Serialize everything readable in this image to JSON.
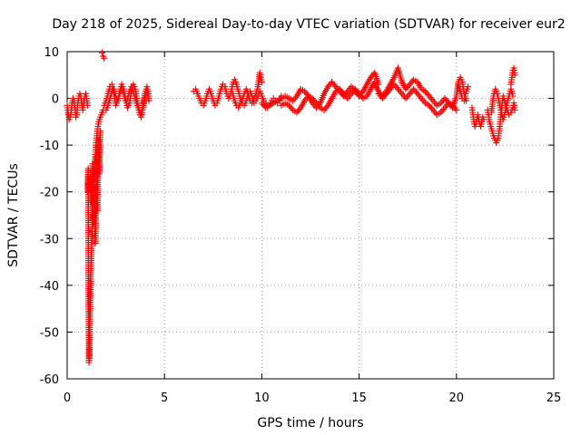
{
  "chart_data": {
    "type": "scatter",
    "title": "Day 218 of 2025, Sidereal Day-to-day VTEC variation (SDTVAR) for receiver eur2",
    "xlabel": "GPS time / hours",
    "ylabel": "SDTVAR / TECUs",
    "xlim": [
      0,
      25
    ],
    "ylim": [
      -60,
      10
    ],
    "xticks": [
      0,
      5,
      10,
      15,
      20,
      25
    ],
    "yticks": [
      -60,
      -50,
      -40,
      -30,
      -20,
      -10,
      0,
      10
    ],
    "xtick_labels": [
      "0",
      "5",
      "10",
      "15",
      "20",
      "25"
    ],
    "ytick_labels": [
      "-60",
      "-50",
      "-40",
      "-30",
      "-20",
      "-10",
      "0",
      "10"
    ],
    "grid": true,
    "marker": "plus",
    "color": "#ff0000",
    "series": [
      {
        "name": "SDTVAR",
        "segments": [
          {
            "x": [
              0.0,
              0.05,
              0.1,
              0.15,
              0.2,
              0.25,
              0.3,
              0.35,
              0.4,
              0.45,
              0.5,
              0.55,
              0.6,
              0.65,
              0.7,
              0.75,
              0.8,
              0.85,
              0.9,
              0.95,
              1.0,
              1.05
            ],
            "y": [
              -1.5,
              -3.0,
              -4.5,
              -4.0,
              -3.0,
              -1.0,
              0.0,
              -0.5,
              -2.0,
              -4.0,
              -3.5,
              -1.0,
              0.5,
              1.0,
              0.5,
              -1.0,
              -2.5,
              -1.0,
              0.5,
              1.0,
              0.0,
              -1.5
            ]
          },
          {
            "x": [
              1.05,
              1.08,
              1.1,
              1.12,
              1.14,
              1.16,
              1.18,
              1.2,
              1.22,
              1.24,
              1.26,
              1.28,
              1.3,
              1.32,
              1.34,
              1.36,
              1.38,
              1.4,
              1.42,
              1.44,
              1.46,
              1.48,
              1.5,
              1.52,
              1.55,
              1.58,
              1.62,
              1.66,
              1.7,
              1.75,
              1.8,
              1.85
            ],
            "y": [
              -20.0,
              -15.0,
              -42.0,
              -56.5,
              -55.0,
              -49.0,
              -45.0,
              -40.0,
              -36.0,
              -33.0,
              -30.0,
              -28.0,
              -26.0,
              -24.0,
              -22.0,
              -20.0,
              -18.0,
              -16.0,
              -14.0,
              -12.5,
              -11.0,
              -10.0,
              -9.0,
              -8.0,
              -7.0,
              -6.0,
              -5.0,
              -4.5,
              -4.0,
              -3.5,
              -3.0,
              -2.5
            ]
          },
          {
            "x": [
              1.2,
              1.25,
              1.3,
              1.35,
              1.4,
              1.45,
              1.5,
              1.55,
              1.6,
              1.65,
              1.7
            ],
            "y": [
              -17.0,
              -22.0,
              -14.0,
              -27.0,
              -19.0,
              -31.0,
              -12.0,
              -24.0,
              -9.0,
              -16.0,
              -7.0
            ]
          },
          {
            "x": [
              1.8,
              1.85,
              1.9
            ],
            "y": [
              9.8,
              9.0,
              8.6
            ]
          },
          {
            "x": [
              1.9,
              2.0,
              2.1,
              2.2,
              2.3,
              2.4,
              2.5,
              2.6,
              2.7,
              2.8,
              2.9,
              3.0,
              3.1,
              3.2,
              3.3,
              3.4,
              3.5,
              3.6,
              3.7,
              3.8,
              3.9,
              4.0,
              4.1,
              4.2
            ],
            "y": [
              -1.5,
              -0.5,
              1.0,
              2.5,
              3.0,
              1.0,
              -1.5,
              -0.5,
              1.5,
              3.0,
              2.0,
              0.0,
              -2.0,
              -1.0,
              1.5,
              3.0,
              2.0,
              -0.5,
              -3.0,
              -4.0,
              -2.0,
              1.0,
              2.5,
              0.5
            ]
          },
          {
            "x": [
              2.0,
              2.1,
              2.2,
              2.3,
              2.4,
              2.5,
              2.6,
              2.7,
              2.8,
              2.9,
              3.0,
              3.1,
              3.2,
              3.3,
              3.4,
              3.5,
              3.6,
              3.7,
              3.8,
              3.9,
              4.0,
              4.1,
              4.2
            ],
            "y": [
              -2.5,
              -1.5,
              0.0,
              1.5,
              2.0,
              0.5,
              -0.5,
              1.0,
              2.0,
              1.0,
              -0.5,
              0.0,
              1.5,
              2.5,
              1.5,
              0.0,
              -1.5,
              -2.5,
              -3.5,
              -1.5,
              0.5,
              1.5,
              -0.5
            ]
          },
          {
            "x": [
              6.5,
              6.6,
              6.7,
              6.8,
              6.9,
              7.0,
              7.1,
              7.2,
              7.3,
              7.4,
              7.5,
              7.6,
              7.7,
              7.8,
              7.9,
              8.0,
              8.1,
              8.2,
              8.3,
              8.4,
              8.5,
              8.6,
              8.7,
              8.8,
              8.9,
              9.0,
              9.1,
              9.2,
              9.3,
              9.4,
              9.5,
              9.6,
              9.7,
              9.8,
              9.9,
              10.0,
              10.1,
              10.2,
              10.3,
              10.4,
              10.5,
              10.6,
              10.7,
              10.8,
              10.9,
              11.0
            ],
            "y": [
              1.5,
              2.0,
              1.0,
              0.0,
              -1.0,
              -1.5,
              -0.5,
              1.0,
              2.0,
              1.0,
              -0.5,
              -1.5,
              -1.0,
              0.5,
              2.0,
              3.0,
              2.5,
              1.0,
              0.0,
              1.0,
              3.0,
              4.0,
              3.0,
              1.5,
              0.0,
              -1.0,
              -1.5,
              -0.5,
              1.0,
              1.5,
              0.5,
              -1.0,
              -0.5,
              0.5,
              1.5,
              0.5,
              -0.5,
              -1.0,
              -2.0,
              -1.5,
              -0.5,
              0.0,
              -0.5,
              -1.0,
              -0.5,
              0.5
            ]
          },
          {
            "x": [
              8.5,
              8.6,
              8.7,
              8.8,
              8.9,
              9.0,
              9.1,
              9.2,
              9.3,
              9.4,
              9.5,
              9.6,
              9.7,
              9.8,
              9.9,
              10.0
            ],
            "y": [
              1.0,
              -0.5,
              -1.5,
              -2.0,
              -1.0,
              0.0,
              1.0,
              2.0,
              1.0,
              -0.5,
              -1.0,
              0.0,
              1.0,
              2.5,
              5.5,
              3.5
            ]
          },
          {
            "x": [
              10.0,
              10.2,
              10.4,
              10.6,
              10.8,
              11.0,
              11.2,
              11.4,
              11.6,
              11.8,
              12.0,
              12.2,
              12.4,
              12.6,
              12.8,
              13.0,
              13.2,
              13.4,
              13.6,
              13.8,
              14.0,
              14.2,
              14.4,
              14.6,
              14.8,
              15.0,
              15.2,
              15.4,
              15.6,
              15.8,
              16.0
            ],
            "y": [
              -1.0,
              -2.0,
              -1.5,
              -1.0,
              -0.5,
              0.0,
              0.5,
              0.0,
              -0.5,
              0.5,
              2.0,
              1.5,
              0.5,
              -1.0,
              -2.0,
              -1.0,
              1.0,
              2.5,
              3.5,
              2.5,
              1.5,
              0.5,
              1.5,
              2.5,
              1.5,
              0.5,
              1.5,
              3.0,
              4.5,
              5.5,
              3.0
            ]
          },
          {
            "x": [
              11.0,
              11.2,
              11.4,
              11.6,
              11.8,
              12.0,
              12.2,
              12.4,
              12.6,
              12.8,
              13.0,
              13.2,
              13.4,
              13.6,
              13.8,
              14.0,
              14.2,
              14.4,
              14.6,
              14.8,
              15.0,
              15.2,
              15.4,
              15.6,
              15.8
            ],
            "y": [
              -1.5,
              -1.0,
              -1.5,
              -2.5,
              -3.0,
              -2.0,
              -0.5,
              0.5,
              0.0,
              -1.0,
              -2.0,
              -2.5,
              -1.5,
              0.0,
              1.5,
              2.0,
              1.0,
              0.0,
              1.0,
              2.0,
              1.0,
              0.0,
              0.5,
              2.0,
              3.5
            ]
          },
          {
            "x": [
              15.8,
              16.0,
              16.2,
              16.4,
              16.6,
              16.8,
              17.0,
              17.2,
              17.4,
              17.6,
              17.8,
              18.0,
              18.2,
              18.4,
              18.6,
              18.8,
              19.0,
              19.2,
              19.4,
              19.6,
              19.8,
              20.0,
              20.1,
              20.2,
              20.3,
              20.4,
              20.5
            ],
            "y": [
              3.0,
              1.5,
              0.5,
              1.5,
              3.0,
              4.5,
              6.5,
              3.5,
              2.0,
              3.0,
              4.0,
              3.5,
              2.0,
              1.5,
              0.5,
              -0.5,
              -1.5,
              -1.0,
              0.0,
              -1.0,
              -2.0,
              0.5,
              3.5,
              4.5,
              3.5,
              1.0,
              -0.5
            ]
          },
          {
            "x": [
              16.0,
              16.2,
              16.4,
              16.6,
              16.8,
              17.0,
              17.2,
              17.4,
              17.6,
              17.8,
              18.0,
              18.2,
              18.4,
              18.6,
              18.8,
              19.0,
              19.2,
              19.4,
              19.6,
              19.8,
              20.0
            ],
            "y": [
              1.0,
              0.0,
              1.0,
              2.0,
              3.0,
              2.0,
              1.0,
              0.0,
              1.0,
              2.0,
              1.0,
              0.0,
              -1.0,
              -1.5,
              -2.5,
              -3.5,
              -3.0,
              -2.0,
              -1.0,
              -1.5,
              -2.5
            ]
          },
          {
            "x": [
              20.1,
              20.2,
              20.3,
              20.4,
              20.5,
              20.6
            ],
            "y": [
              3.0,
              1.5,
              0.0,
              -0.5,
              1.5,
              2.5
            ]
          },
          {
            "x": [
              20.8,
              20.85,
              20.9,
              20.95,
              21.0,
              21.05,
              21.1,
              21.15,
              21.2,
              21.25,
              21.3,
              21.35,
              21.4
            ],
            "y": [
              -2.0,
              -3.5,
              -5.0,
              -6.0,
              -5.5,
              -4.5,
              -3.5,
              -4.5,
              -5.5,
              -6.0,
              -5.0,
              -4.0,
              -4.5
            ]
          },
          {
            "x": [
              21.6,
              21.7,
              21.8,
              21.9,
              22.0,
              22.05,
              22.1,
              22.15,
              22.2,
              22.25,
              22.3,
              22.35,
              22.4,
              22.5,
              22.6,
              22.7,
              22.8,
              22.9,
              22.95,
              23.0
            ],
            "y": [
              -2.5,
              -5.0,
              -6.5,
              -8.0,
              -9.0,
              -9.5,
              -9.0,
              -8.5,
              -7.0,
              -5.0,
              -3.0,
              -1.0,
              0.5,
              -1.0,
              -2.5,
              -3.5,
              -3.0,
              -2.0,
              -1.0,
              -2.5
            ]
          },
          {
            "x": [
              21.8,
              21.9,
              22.0,
              22.1,
              22.2,
              22.3,
              22.4,
              22.5,
              22.6,
              22.7,
              22.8,
              22.9
            ],
            "y": [
              -3.0,
              0.5,
              2.0,
              1.0,
              -1.0,
              -3.0,
              -4.5,
              -3.0,
              -1.0,
              0.5,
              2.0,
              0.5
            ]
          },
          {
            "x": [
              22.8,
              22.85,
              22.9,
              22.95,
              23.0
            ],
            "y": [
              3.0,
              4.5,
              6.0,
              6.5,
              5.0
            ]
          }
        ]
      }
    ]
  }
}
